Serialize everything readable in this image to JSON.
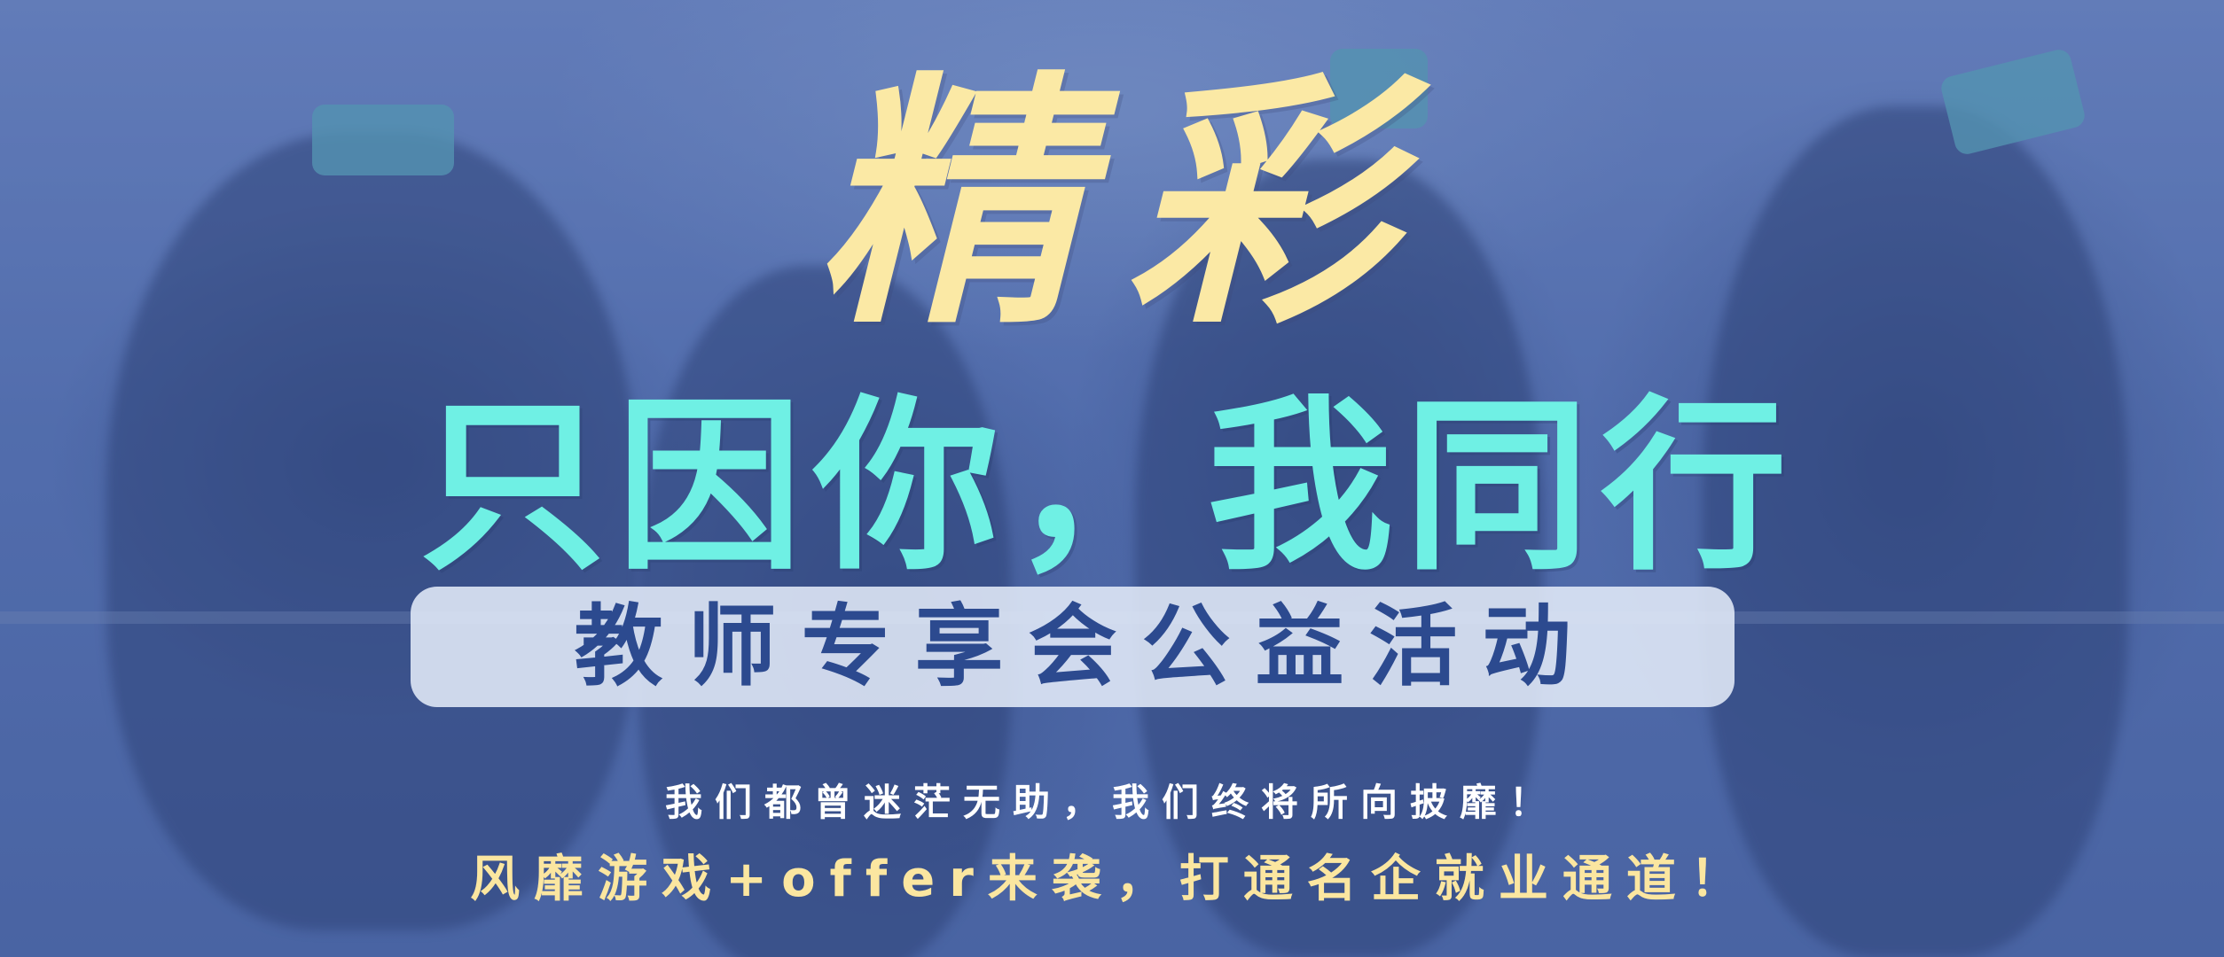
{
  "banner": {
    "title_top": "精彩",
    "title_mid": "只因你，我同行",
    "subtitle": "教师专享会公益活动",
    "tagline_1": "我们都曾迷茫无助，我们终将所向披靡！",
    "tagline_2": "风靡游戏+offer来袭，打通名企就业通道！"
  },
  "colors": {
    "background": "#5570ad",
    "title_top": "#fbe9a5",
    "title_mid": "#6ff0e4",
    "subtitle_text": "#2c4a8f",
    "subtitle_box": "#e2eaf8",
    "tagline_1": "#ffffff",
    "tagline_2": "#fbe6a0"
  }
}
